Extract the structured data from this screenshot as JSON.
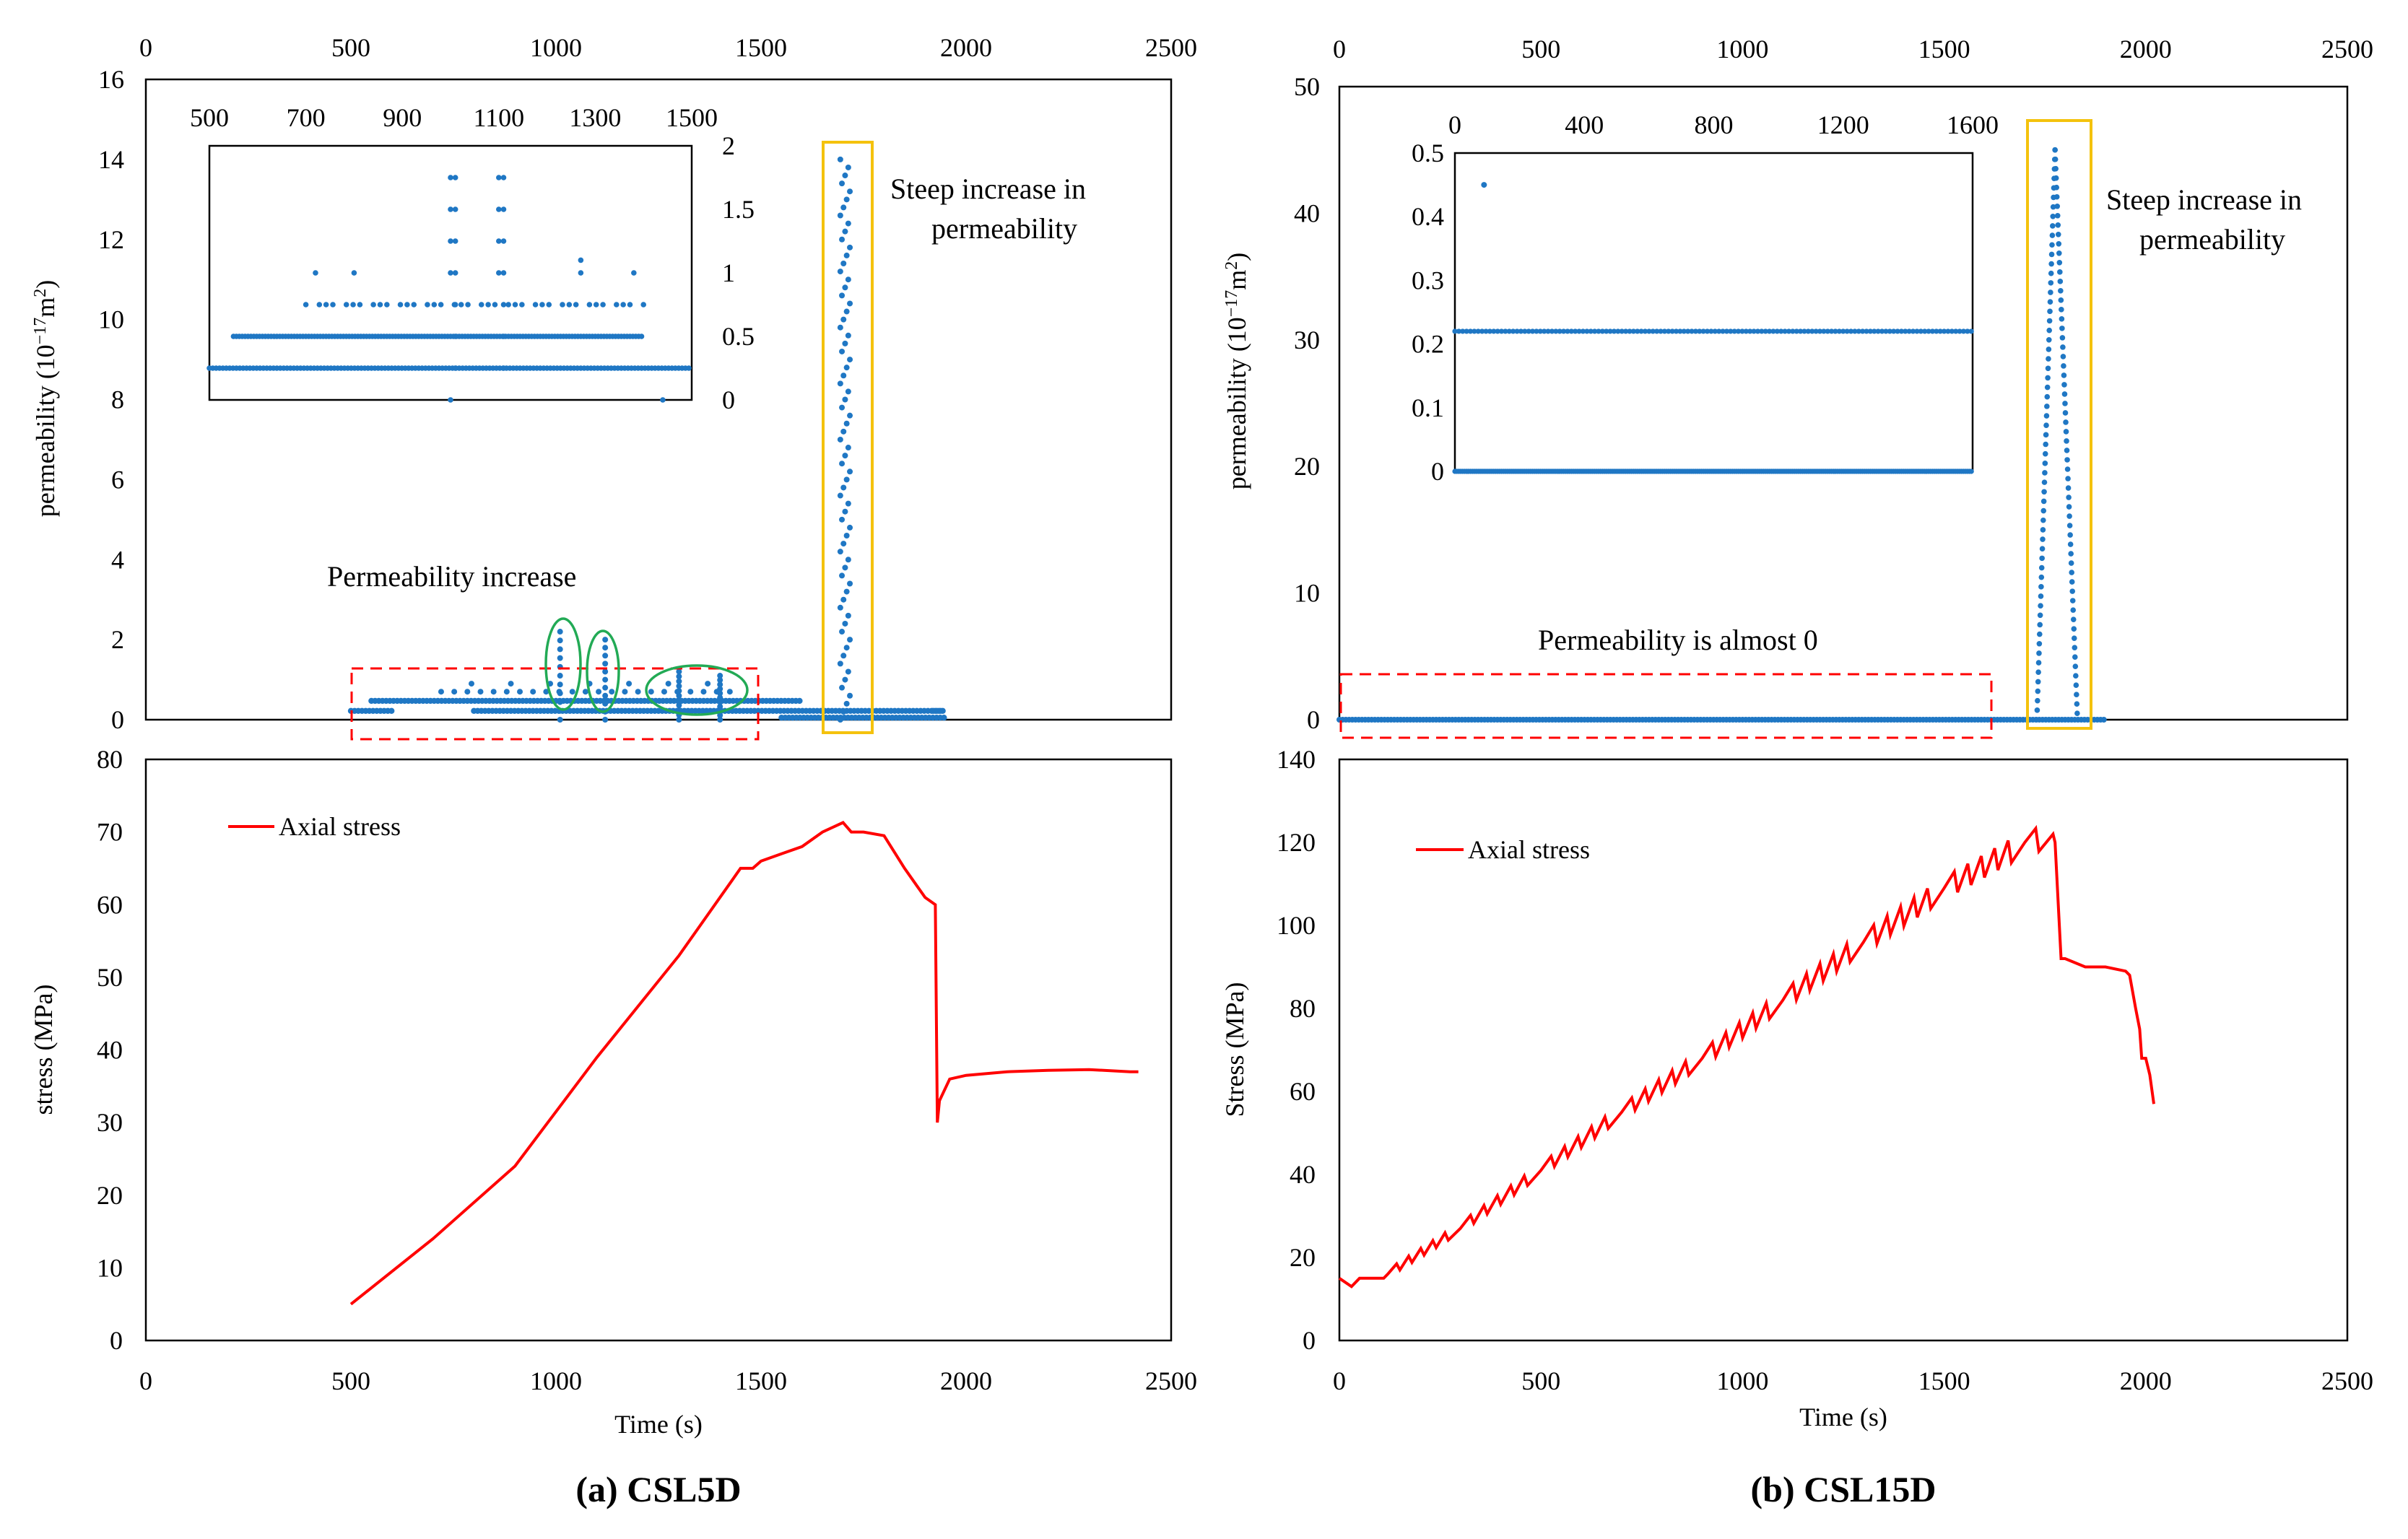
{
  "panels": [
    {
      "caption": "(a) CSL5D"
    },
    {
      "caption": "(b) CSL15D"
    }
  ],
  "colors": {
    "points": "#1f77c4",
    "stress": "#ff0000",
    "yellow_box": "#f4c20d",
    "red_dash": "#ff0000",
    "green_ellipse": "#22aa55"
  },
  "chart_data": [
    {
      "id": "a-perm",
      "type": "scatter",
      "ylabel_main": "permeability (10",
      "ylabel_sup1": "−17",
      "ylabel_mid": "m",
      "ylabel_sup2": "2",
      "ylabel_end": ")",
      "xlim": [
        0,
        2500
      ],
      "ylim": [
        0,
        16
      ],
      "xticks": [
        "0",
        "500",
        "1000",
        "1500",
        "2000",
        "2500"
      ],
      "yticks": [
        "0",
        "2",
        "4",
        "6",
        "8",
        "10",
        "12",
        "14",
        "16"
      ],
      "x_axis_position": "top",
      "series": [
        {
          "segments": [
            [
              500,
              600,
              0.22
            ],
            [
              550,
              1600,
              0.47
            ],
            [
              800,
              1950,
              0.22
            ],
            [
              1550,
              1950,
              0.05
            ],
            [
              1920,
              1940,
              0.22
            ]
          ]
        },
        {
          "spikes": [
            [
              1010,
              2.2
            ],
            [
              1120,
              2.0
            ],
            [
              1300,
              1.2
            ],
            [
              1400,
              1.1
            ],
            [
              1705,
              14.0
            ]
          ]
        }
      ],
      "annotations": [
        {
          "text": "Steep increase in",
          "line2": "permeability"
        },
        {
          "text": "Permeability  increase"
        }
      ],
      "inset": {
        "xlim": [
          500,
          1500
        ],
        "ylim": [
          0,
          2
        ],
        "xticks": [
          "500",
          "700",
          "900",
          "1100",
          "1300",
          "1500"
        ],
        "yticks": [
          "0",
          "0.5",
          "1",
          "1.5",
          "2"
        ],
        "levels": [
          0,
          0.25,
          0.5,
          0.75,
          1.0,
          1.25,
          1.5,
          1.75
        ],
        "y_axis_position": "right",
        "x_axis_position": "top"
      }
    },
    {
      "id": "a-stress",
      "type": "line",
      "series": [
        {
          "name": "Axial stress"
        }
      ],
      "xlabel": "Time (s)",
      "ylabel": "stress (MPa)",
      "xlim": [
        0,
        2500
      ],
      "ylim": [
        0,
        80
      ],
      "xticks": [
        "0",
        "500",
        "1000",
        "1500",
        "2000",
        "2500"
      ],
      "yticks": [
        "0",
        "10",
        "20",
        "30",
        "40",
        "50",
        "60",
        "70",
        "80"
      ],
      "x": [
        500,
        700,
        900,
        1100,
        1300,
        1450,
        1480,
        1500,
        1550,
        1600,
        1650,
        1700,
        1720,
        1750,
        1800,
        1850,
        1900,
        1925,
        1930,
        1935,
        1960,
        2000,
        2100,
        2200,
        2300,
        2400,
        2420
      ],
      "y": [
        5,
        14,
        24,
        39,
        53,
        65,
        65,
        66,
        67,
        68,
        70,
        71.3,
        70,
        70,
        69.5,
        65,
        61,
        60,
        30,
        33,
        36,
        36.5,
        37,
        37.2,
        37.3,
        37,
        37
      ]
    },
    {
      "id": "b-perm",
      "type": "scatter",
      "ylabel_main": "permeability (10",
      "ylabel_sup1": "−17",
      "ylabel_mid": "m",
      "ylabel_sup2": "2",
      "ylabel_end": ")",
      "xlim": [
        0,
        2500
      ],
      "ylim": [
        0,
        50
      ],
      "xticks": [
        "0",
        "500",
        "1000",
        "1500",
        "2000",
        "2500"
      ],
      "yticks": [
        "0",
        "10",
        "20",
        "30",
        "40",
        "50"
      ],
      "x_axis_position": "top",
      "annotations": [
        {
          "text": "Steep increase in",
          "line2": "permeability"
        },
        {
          "text": "Permeability is almost 0"
        }
      ],
      "inset": {
        "xlim": [
          0,
          1600
        ],
        "ylim": [
          0,
          0.5
        ],
        "xticks": [
          "0",
          "400",
          "800",
          "1200",
          "1600"
        ],
        "yticks": [
          "0",
          "0.1",
          "0.2",
          "0.3",
          "0.4",
          "0.5"
        ],
        "levels": [
          0,
          0.22
        ],
        "outlier": [
          90,
          0.45
        ],
        "x_axis_position": "top"
      },
      "spike": {
        "x_start": 1730,
        "x_end": 1830,
        "peak_x": 1775,
        "peak_y": 45
      }
    },
    {
      "id": "b-stress",
      "type": "line",
      "series": [
        {
          "name": "Axial stress"
        }
      ],
      "xlabel": "Time (s)",
      "ylabel": "Stress (MPa)",
      "xlim": [
        0,
        2500
      ],
      "ylim": [
        0,
        140
      ],
      "xticks": [
        "0",
        "500",
        "1000",
        "1500",
        "2000",
        "2500"
      ],
      "yticks": [
        "0",
        "20",
        "40",
        "60",
        "80",
        "100",
        "120",
        "140"
      ],
      "x": [
        0,
        30,
        50,
        100,
        110,
        120,
        300,
        500,
        700,
        900,
        1100,
        1300,
        1500,
        1700,
        1770,
        1775,
        1790,
        1800,
        1850,
        1900,
        1950,
        1960,
        1975,
        1985,
        1990,
        2000,
        2010,
        2020
      ],
      "y": [
        15,
        13,
        15,
        15,
        15,
        16,
        27,
        41,
        55,
        68,
        82,
        96,
        109,
        120,
        122,
        120,
        92,
        92,
        90,
        90,
        89,
        88,
        80,
        75,
        68,
        68,
        64,
        57
      ]
    }
  ]
}
